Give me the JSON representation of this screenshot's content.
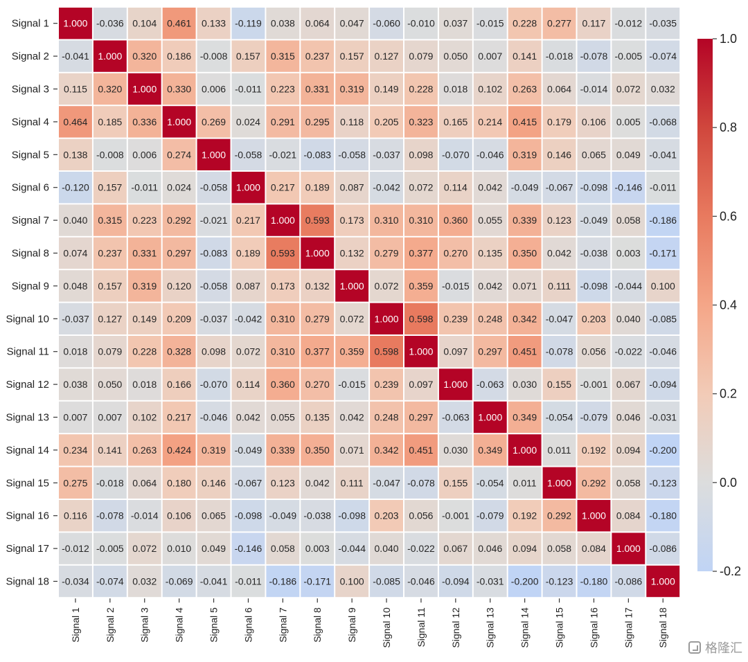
{
  "chart_data": {
    "type": "heatmap",
    "title": "",
    "xlabel": "",
    "ylabel": "",
    "row_labels": [
      "Signal 1",
      "Signal 2",
      "Signal 3",
      "Signal 4",
      "Signal 5",
      "Signal 6",
      "Signal 7",
      "Signal 8",
      "Signal 9",
      "Signal 10",
      "Signal 11",
      "Signal 12",
      "Signal 13",
      "Signal 14",
      "Signal 15",
      "Signal 16",
      "Signal 17",
      "Signal 18"
    ],
    "column_labels": [
      "Signal 1",
      "Signal 2",
      "Signal 3",
      "Signal 4",
      "Signal 5",
      "Signal 6",
      "Signal 7",
      "Signal 8",
      "Signal 9",
      "Signal 10",
      "Signal 11",
      "Signal 12",
      "Signal 13",
      "Signal 14",
      "Signal 15",
      "Signal 16",
      "Signal 17",
      "Signal 18"
    ],
    "values": [
      [
        1.0,
        -0.036,
        0.104,
        0.461,
        0.133,
        -0.119,
        0.038,
        0.064,
        0.047,
        -0.06,
        -0.01,
        0.037,
        -0.015,
        0.228,
        0.277,
        0.117,
        -0.012,
        -0.035
      ],
      [
        -0.041,
        1.0,
        0.32,
        0.186,
        -0.008,
        0.157,
        0.315,
        0.237,
        0.157,
        0.127,
        0.079,
        0.05,
        0.007,
        0.141,
        -0.018,
        -0.078,
        -0.005,
        -0.074
      ],
      [
        0.115,
        0.32,
        1.0,
        0.33,
        0.006,
        -0.011,
        0.223,
        0.331,
        0.319,
        0.149,
        0.228,
        0.018,
        0.102,
        0.263,
        0.064,
        -0.014,
        0.072,
        0.032
      ],
      [
        0.464,
        0.185,
        0.336,
        1.0,
        0.269,
        0.024,
        0.291,
        0.295,
        0.118,
        0.205,
        0.323,
        0.165,
        0.214,
        0.415,
        0.179,
        0.106,
        0.005,
        -0.068
      ],
      [
        0.138,
        -0.008,
        0.006,
        0.274,
        1.0,
        -0.058,
        -0.021,
        -0.083,
        -0.058,
        -0.037,
        0.098,
        -0.07,
        -0.046,
        0.319,
        0.146,
        0.065,
        0.049,
        -0.041
      ],
      [
        -0.12,
        0.157,
        -0.011,
        0.024,
        -0.058,
        1.0,
        0.217,
        0.189,
        0.087,
        -0.042,
        0.072,
        0.114,
        0.042,
        -0.049,
        -0.067,
        -0.098,
        -0.146,
        -0.011
      ],
      [
        0.04,
        0.315,
        0.223,
        0.292,
        -0.021,
        0.217,
        1.0,
        0.593,
        0.173,
        0.31,
        0.31,
        0.36,
        0.055,
        0.339,
        0.123,
        -0.049,
        0.058,
        -0.186
      ],
      [
        0.074,
        0.237,
        0.331,
        0.297,
        -0.083,
        0.189,
        0.593,
        1.0,
        0.132,
        0.279,
        0.377,
        0.27,
        0.135,
        0.35,
        0.042,
        -0.038,
        0.003,
        -0.171
      ],
      [
        0.048,
        0.157,
        0.319,
        0.12,
        -0.058,
        0.087,
        0.173,
        0.132,
        1.0,
        0.072,
        0.359,
        -0.015,
        0.042,
        0.071,
        0.111,
        -0.098,
        -0.044,
        0.1
      ],
      [
        -0.037,
        0.127,
        0.149,
        0.209,
        -0.037,
        -0.042,
        0.31,
        0.279,
        0.072,
        1.0,
        0.598,
        0.239,
        0.248,
        0.342,
        -0.047,
        0.203,
        0.04,
        -0.085
      ],
      [
        0.018,
        0.079,
        0.228,
        0.328,
        0.098,
        0.072,
        0.31,
        0.377,
        0.359,
        0.598,
        1.0,
        0.097,
        0.297,
        0.451,
        -0.078,
        0.056,
        -0.022,
        -0.046
      ],
      [
        0.038,
        0.05,
        0.018,
        0.166,
        -0.07,
        0.114,
        0.36,
        0.27,
        -0.015,
        0.239,
        0.097,
        1.0,
        -0.063,
        0.03,
        0.155,
        -0.001,
        0.067,
        -0.094
      ],
      [
        0.007,
        0.007,
        0.102,
        0.217,
        -0.046,
        0.042,
        0.055,
        0.135,
        0.042,
        0.248,
        0.297,
        -0.063,
        1.0,
        0.349,
        -0.054,
        -0.079,
        0.046,
        -0.031
      ],
      [
        0.234,
        0.141,
        0.263,
        0.424,
        0.319,
        -0.049,
        0.339,
        0.35,
        0.071,
        0.342,
        0.451,
        0.03,
        0.349,
        1.0,
        0.011,
        0.192,
        0.094,
        -0.2
      ],
      [
        0.275,
        -0.018,
        0.064,
        0.18,
        0.146,
        -0.067,
        0.123,
        0.042,
        0.111,
        -0.047,
        -0.078,
        0.155,
        -0.054,
        0.011,
        1.0,
        0.292,
        0.058,
        -0.123
      ],
      [
        0.116,
        -0.078,
        -0.014,
        0.106,
        0.065,
        -0.098,
        -0.049,
        -0.038,
        -0.098,
        0.203,
        0.056,
        -0.001,
        -0.079,
        0.192,
        0.292,
        1.0,
        0.084,
        -0.18
      ],
      [
        -0.012,
        -0.005,
        0.072,
        0.01,
        0.049,
        -0.146,
        0.058,
        0.003,
        -0.044,
        0.04,
        -0.022,
        0.067,
        0.046,
        0.094,
        0.058,
        0.084,
        1.0,
        -0.086
      ],
      [
        -0.034,
        -0.074,
        0.032,
        -0.069,
        -0.041,
        -0.011,
        -0.186,
        -0.171,
        0.1,
        -0.085,
        -0.046,
        -0.094,
        -0.031,
        -0.2,
        -0.123,
        -0.18,
        -0.086,
        1.0
      ]
    ],
    "value_format": "3 decimals",
    "color_scale": {
      "min": -0.2,
      "max": 1.0,
      "center": 0.0,
      "ticks": [
        "1.0",
        "0.8",
        "0.6",
        "0.4",
        "0.2",
        "0.0",
        "-0.2"
      ],
      "stops": [
        {
          "value": -0.2,
          "color": "#c0d4f5"
        },
        {
          "value": 0.0,
          "color": "#dcdddd"
        },
        {
          "value": 0.2,
          "color": "#f2cbb7"
        },
        {
          "value": 0.4,
          "color": "#f4a688"
        },
        {
          "value": 0.6,
          "color": "#e87a5f"
        },
        {
          "value": 0.8,
          "color": "#d0473d"
        },
        {
          "value": 1.0,
          "color": "#b40426"
        }
      ]
    },
    "grid": "white cell borders",
    "legend": "colorbar right"
  },
  "watermark": "格隆汇"
}
